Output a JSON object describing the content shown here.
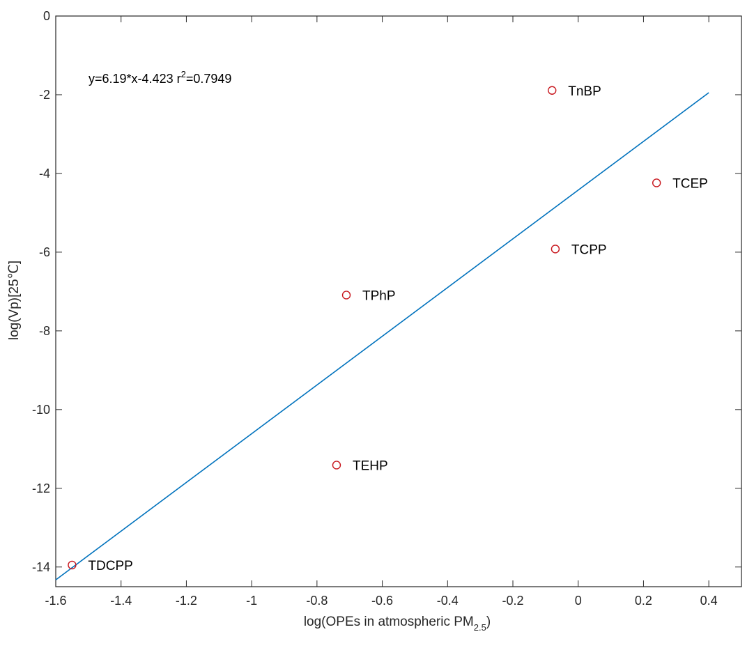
{
  "chart_data": {
    "type": "scatter",
    "xlabel_main": "log(OPEs in atmospheric PM",
    "xlabel_sub": "2.5",
    "xlabel_end": ")",
    "ylabel": "log(Vp)[25℃]",
    "xlim": [
      -1.6,
      0.5
    ],
    "ylim": [
      -14.5,
      0
    ],
    "xticks": [
      -1.6,
      -1.4,
      -1.2,
      -1,
      -0.8,
      -0.6,
      -0.4,
      -0.2,
      0,
      0.2,
      0.4
    ],
    "xtick_labels": [
      "-1.6",
      "-1.4",
      "-1.2",
      "-1",
      "-0.8",
      "-0.6",
      "-0.4",
      "-0.2",
      "0",
      "0.2",
      "0.4"
    ],
    "yticks": [
      0,
      -2,
      -4,
      -6,
      -8,
      -10,
      -12,
      -14
    ],
    "ytick_labels": [
      "0",
      "-2",
      "-4",
      "-6",
      "-8",
      "-10",
      "-12",
      "-14"
    ],
    "points": [
      {
        "label": "TnBP",
        "x": -0.08,
        "y": -1.89
      },
      {
        "label": "TCEP",
        "x": 0.24,
        "y": -4.24
      },
      {
        "label": "TCPP",
        "x": -0.07,
        "y": -5.92
      },
      {
        "label": "TPhP",
        "x": -0.71,
        "y": -7.09
      },
      {
        "label": "TEHP",
        "x": -0.74,
        "y": -11.41
      },
      {
        "label": "TDCPP",
        "x": -1.55,
        "y": -13.95
      }
    ],
    "fit_line": {
      "slope": 6.19,
      "intercept": -4.423,
      "x_range": [
        -1.6,
        0.4
      ]
    },
    "equation_main": "y=6.19*x-4.423 r",
    "equation_sup": "2",
    "equation_end": "=0.7949",
    "colors": {
      "marker": "#c8161d",
      "line": "#0072bd",
      "axis": "#262626"
    },
    "grid": false,
    "legend": "none"
  }
}
